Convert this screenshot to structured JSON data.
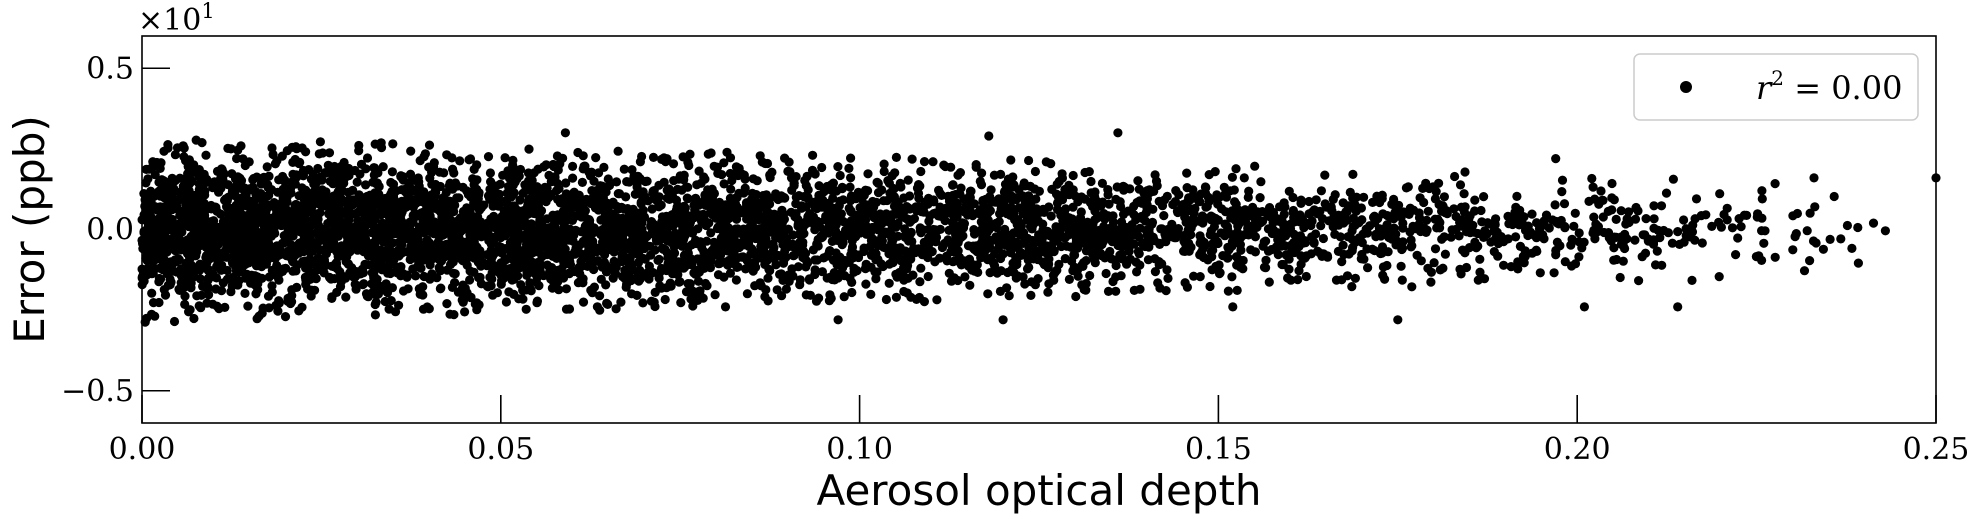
{
  "chart_data": {
    "type": "scatter",
    "xlabel": "Aerosol optical depth",
    "ylabel": "Error (ppb)",
    "y_multiplier_label": "×10",
    "y_multiplier_exponent": "1",
    "xlim": [
      0.0,
      0.25
    ],
    "ylim": [
      -0.6,
      0.6
    ],
    "x_ticks": [
      0.0,
      0.05,
      0.1,
      0.15,
      0.2,
      0.25
    ],
    "x_tick_labels": [
      "0.00",
      "0.05",
      "0.10",
      "0.15",
      "0.20",
      "0.25"
    ],
    "y_ticks": [
      -0.5,
      0.0,
      0.5
    ],
    "y_tick_labels": [
      "−0.5",
      "0.0",
      "0.5"
    ],
    "grid": false,
    "legend": {
      "placement": "top-right",
      "entries": [
        {
          "label_prefix": "r",
          "label_exponent": "2",
          "label_suffix": " = 0.00"
        }
      ]
    },
    "series": [
      {
        "color": "#000000",
        "marker": "circle",
        "distribution": {
          "x_min": 0.0,
          "x_max": 0.25,
          "y_center": 0.0,
          "y_spread_at_x0": 0.29,
          "y_spread_at_xmax": 0.14,
          "approx_points": 5200
        },
        "highlight_points": [
          {
            "x": 0.059,
            "y": 0.3
          },
          {
            "x": 0.136,
            "y": 0.3
          },
          {
            "x": 0.118,
            "y": 0.29
          },
          {
            "x": 0.197,
            "y": 0.22
          },
          {
            "x": 0.233,
            "y": 0.16
          },
          {
            "x": 0.25,
            "y": 0.16
          },
          {
            "x": 0.12,
            "y": -0.28
          },
          {
            "x": 0.175,
            "y": -0.28
          },
          {
            "x": 0.201,
            "y": -0.24
          },
          {
            "x": 0.214,
            "y": -0.24
          },
          {
            "x": 0.097,
            "y": -0.28
          },
          {
            "x": 0.152,
            "y": -0.24
          }
        ]
      }
    ]
  }
}
